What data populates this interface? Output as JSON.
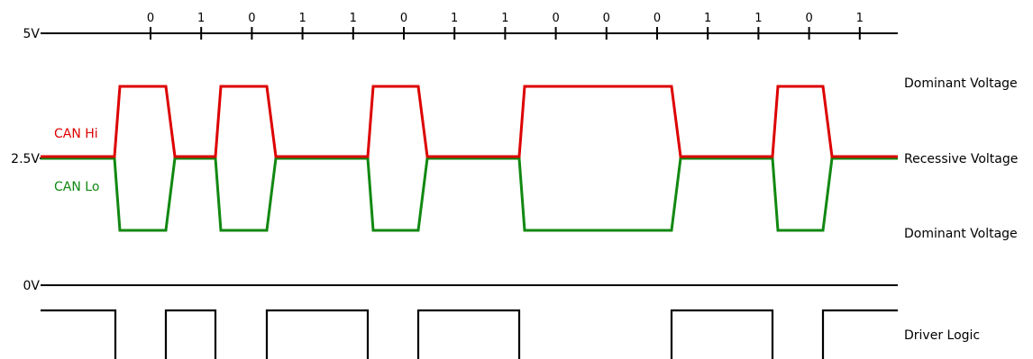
{
  "axis_labels": {
    "v5": "5V",
    "v25": "2.5V",
    "v0": "0V"
  },
  "signal_labels": {
    "can_hi": "CAN Hi",
    "can_lo": "CAN Lo"
  },
  "right_labels": {
    "dominant_top": "Dominant Voltage",
    "recessive": "Recessive Voltage",
    "dominant_bottom": "Dominant Voltage",
    "driver_logic": "Driver Logic"
  },
  "colors": {
    "can_hi": "#dd0000",
    "can_lo": "#118811",
    "axis": "#000000"
  },
  "bits": [
    "0",
    "1",
    "0",
    "1",
    "1",
    "0",
    "1",
    "1",
    "0",
    "0",
    "0",
    "1",
    "1",
    "0",
    "1"
  ]
}
